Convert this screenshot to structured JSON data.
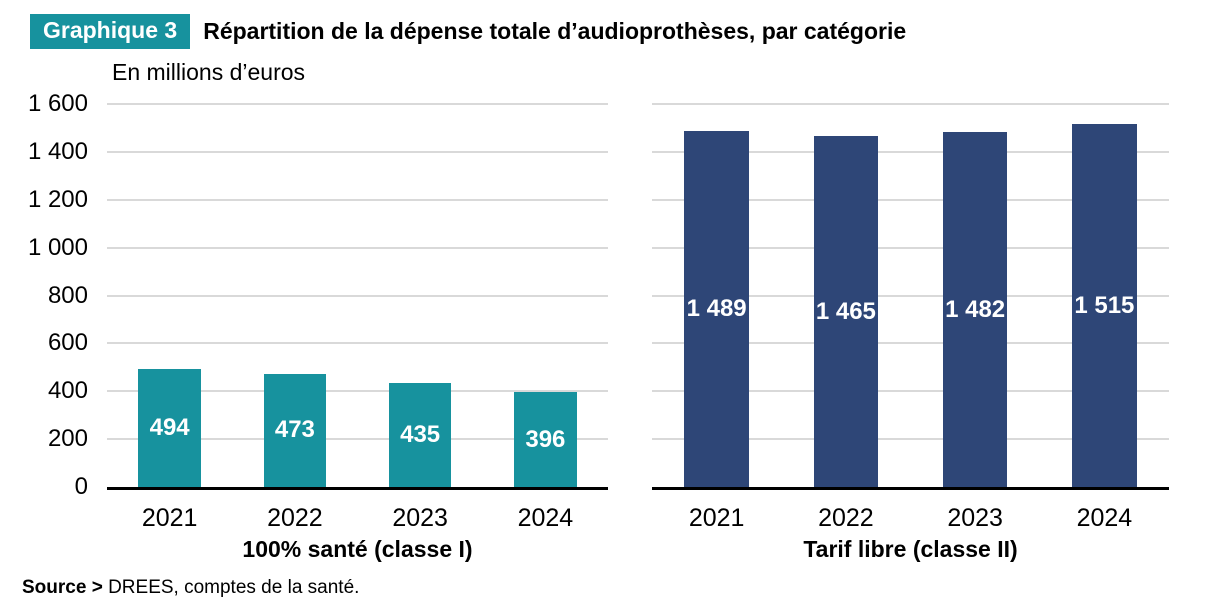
{
  "header": {
    "badge": "Graphique 3",
    "title": "Répartition de la dépense totale d’audioprothèses, par catégorie"
  },
  "y_axis": {
    "unit": "En millions d’euros",
    "ticks": [
      "1 600",
      "1 400",
      "1 200",
      "1 000",
      "800",
      "600",
      "400",
      "200",
      "0"
    ]
  },
  "chart_data": [
    {
      "type": "bar",
      "panel": "left",
      "title": "100% santé (classe I)",
      "categories": [
        "2021",
        "2022",
        "2023",
        "2024"
      ],
      "values": [
        494,
        473,
        435,
        396
      ],
      "value_labels": [
        "494",
        "473",
        "435",
        "396"
      ],
      "bar_color": "#17929E",
      "ylabel": "En millions d’euros",
      "ylim": [
        0,
        1600
      ],
      "ytick_step": 200,
      "grid": true,
      "legend": "none"
    },
    {
      "type": "bar",
      "panel": "right",
      "title": "Tarif libre (classe II)",
      "categories": [
        "2021",
        "2022",
        "2023",
        "2024"
      ],
      "values": [
        1489,
        1465,
        1482,
        1515
      ],
      "value_labels": [
        "1 489",
        "1 465",
        "1 482",
        "1 515"
      ],
      "bar_color": "#2E4677",
      "ylim": [
        0,
        1600
      ],
      "ytick_step": 200,
      "grid": true,
      "legend": "none"
    }
  ],
  "source": {
    "label": "Source >",
    "text": " DREES, comptes de la santé."
  },
  "colors": {
    "teal": "#17929E",
    "navy": "#2E4677",
    "gridline": "#D9D9D9",
    "axis": "#000000",
    "badge_bg": "#17929E",
    "badge_text": "#FFFFFF",
    "bar_label_text": "#FFFFFF"
  }
}
